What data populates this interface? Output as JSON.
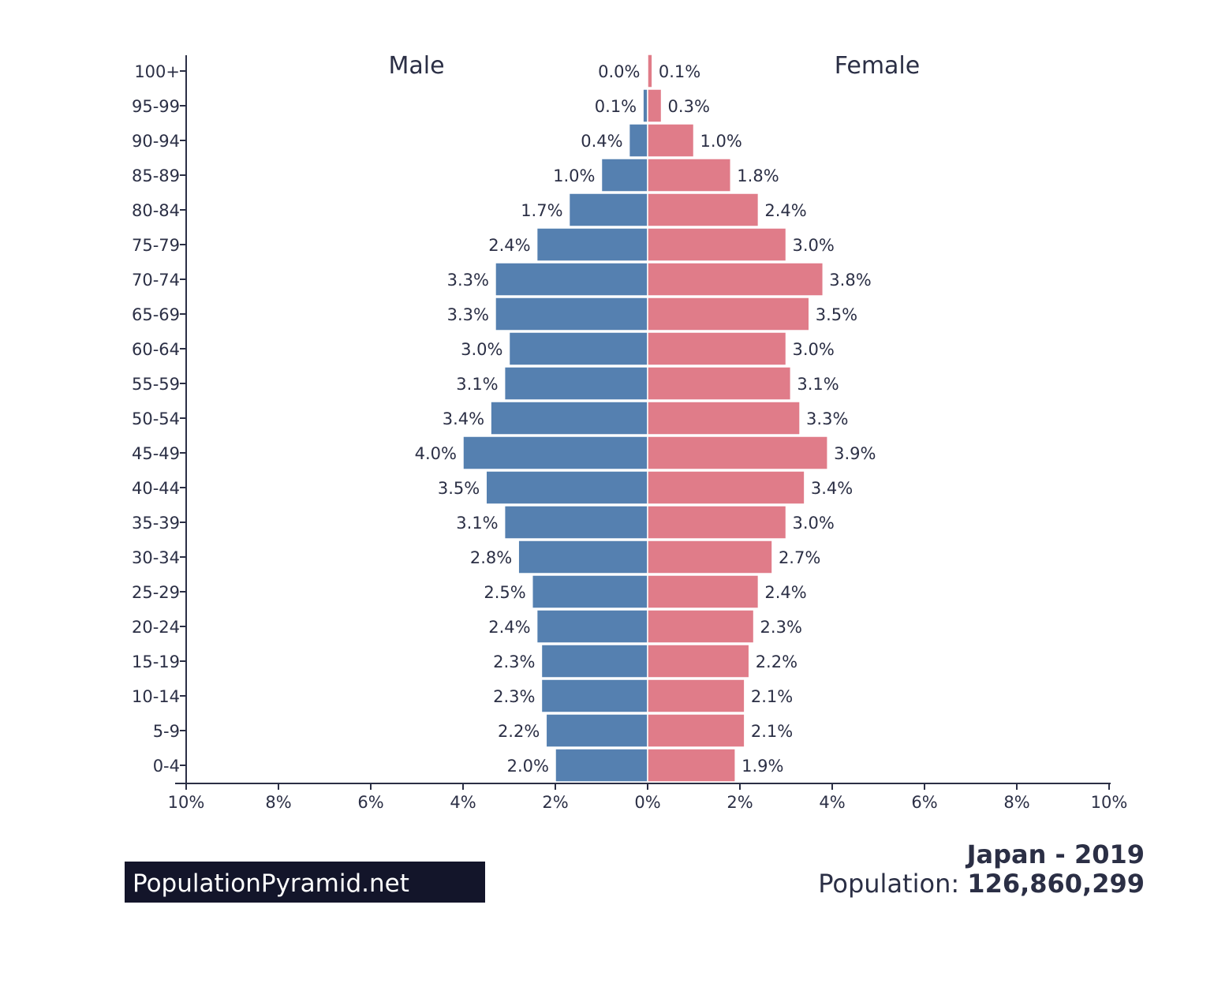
{
  "chart_data": {
    "type": "bar",
    "orientation": "horizontal-population-pyramid",
    "categories": [
      "100+",
      "95-99",
      "90-94",
      "85-89",
      "80-84",
      "75-79",
      "70-74",
      "65-69",
      "60-64",
      "55-59",
      "50-54",
      "45-49",
      "40-44",
      "35-39",
      "30-34",
      "25-29",
      "20-24",
      "15-19",
      "10-14",
      "5-9",
      "0-4"
    ],
    "series": [
      {
        "name": "Male",
        "color": "#5580b0",
        "values": [
          0.0,
          0.1,
          0.4,
          1.0,
          1.7,
          2.4,
          3.3,
          3.3,
          3.0,
          3.1,
          3.4,
          4.0,
          3.5,
          3.1,
          2.8,
          2.5,
          2.4,
          2.3,
          2.3,
          2.2,
          2.0
        ]
      },
      {
        "name": "Female",
        "color": "#e07c89",
        "values": [
          0.1,
          0.3,
          1.0,
          1.8,
          2.4,
          3.0,
          3.8,
          3.5,
          3.0,
          3.1,
          3.3,
          3.9,
          3.4,
          3.0,
          2.7,
          2.4,
          2.3,
          2.2,
          2.1,
          2.1,
          1.9
        ]
      }
    ],
    "value_suffix": "%",
    "xlim": [
      -10,
      10
    ],
    "xticks": [
      "10%",
      "8%",
      "6%",
      "4%",
      "2%",
      "0%",
      "2%",
      "4%",
      "6%",
      "8%",
      "10%"
    ],
    "xtick_values": [
      -10,
      -8,
      -6,
      -4,
      -2,
      0,
      2,
      4,
      6,
      8,
      10
    ],
    "grid": false
  },
  "labels": {
    "male": "Male",
    "female": "Female"
  },
  "footer": {
    "brand": "PopulationPyramid.net",
    "title": "Japan - 2019",
    "population_label": "Population: ",
    "population_value": "126,860,299"
  }
}
